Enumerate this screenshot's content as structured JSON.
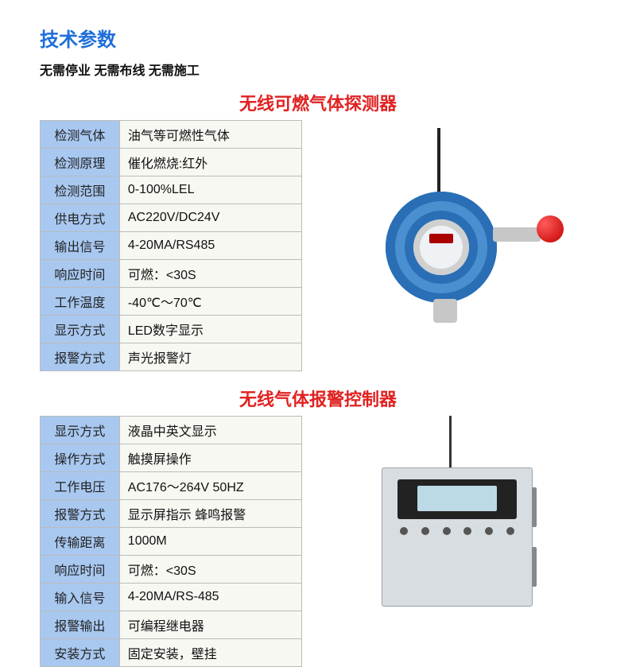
{
  "heading": "技术参数",
  "subheading": "无需停业 无需布线 无需施工",
  "colors": {
    "heading": "#1e6fd9",
    "section_title": "#e02222",
    "label_bg": "#a8c8f0",
    "value_bg": "#f7f8f2",
    "border": "#bbbbbb",
    "beacon": "#c20000",
    "detector_body": "#2a6fb5",
    "controller_body": "#d7dde1"
  },
  "sections": [
    {
      "title": "无线可燃气体探测器",
      "illustration": "gas-detector",
      "rows": [
        {
          "label": "检测气体",
          "value": "油气等可燃性气体"
        },
        {
          "label": "检测原理",
          "value": "催化燃烧:红外"
        },
        {
          "label": "检测范围",
          "value": "0-100%LEL"
        },
        {
          "label": "供电方式",
          "value": "AC220V/DC24V"
        },
        {
          "label": "输出信号",
          "value": "4-20MA/RS485"
        },
        {
          "label": "响应时间",
          "value": "可燃：<30S"
        },
        {
          "label": "工作温度",
          "value": "-40℃～70℃"
        },
        {
          "label": "显示方式",
          "value": "LED数字显示"
        },
        {
          "label": "报警方式",
          "value": "声光报警灯"
        }
      ]
    },
    {
      "title": "无线气体报警控制器",
      "illustration": "alarm-controller",
      "rows": [
        {
          "label": "显示方式",
          "value": "液晶中英文显示"
        },
        {
          "label": "操作方式",
          "value": "触摸屏操作"
        },
        {
          "label": "工作电压",
          "value": "AC176～264V 50HZ"
        },
        {
          "label": "报警方式",
          "value": "显示屏指示 蜂鸣报警"
        },
        {
          "label": "传输距离",
          "value": "1000M"
        },
        {
          "label": "响应时间",
          "value": "可燃：<30S"
        },
        {
          "label": "输入信号",
          "value": " 4-20MA/RS-485"
        },
        {
          "label": "报警输出",
          "value": "可编程继电器"
        },
        {
          "label": "安装方式",
          "value": "固定安装，壁挂"
        }
      ]
    }
  ]
}
